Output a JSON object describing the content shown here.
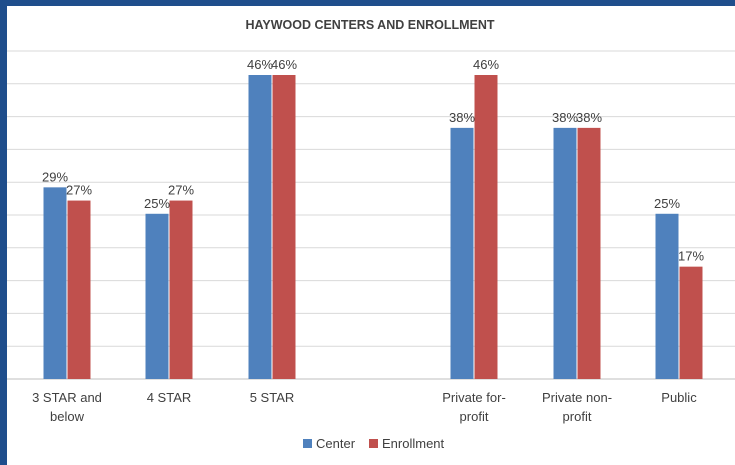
{
  "chart_data": {
    "type": "bar",
    "title": "HAYWOOD CENTERS AND ENROLLMENT",
    "xlabel": "",
    "ylabel": "",
    "categories": [
      [
        "3 STAR and",
        "below"
      ],
      [
        "4 STAR"
      ],
      [
        "5 STAR"
      ],
      [
        "Private for-",
        "profit"
      ],
      [
        "Private non-",
        "profit"
      ],
      [
        "Public"
      ]
    ],
    "category_gap_after": [
      false,
      false,
      true,
      false,
      false,
      false
    ],
    "series": [
      {
        "name": "Center",
        "color": "#4f81bd",
        "values": [
          29,
          25,
          46,
          38,
          38,
          25
        ],
        "labels": [
          "29%",
          "25%",
          "46%",
          "38%",
          "38%",
          "25%"
        ]
      },
      {
        "name": "Enrollment",
        "color": "#c0504d",
        "values": [
          27,
          27,
          46,
          46,
          38,
          17
        ],
        "labels": [
          "27%",
          "27%",
          "46%",
          "46%",
          "38%",
          "17%"
        ]
      }
    ],
    "ylim": [
      0,
      50
    ],
    "gridlines": true,
    "legend_position": "bottom"
  }
}
